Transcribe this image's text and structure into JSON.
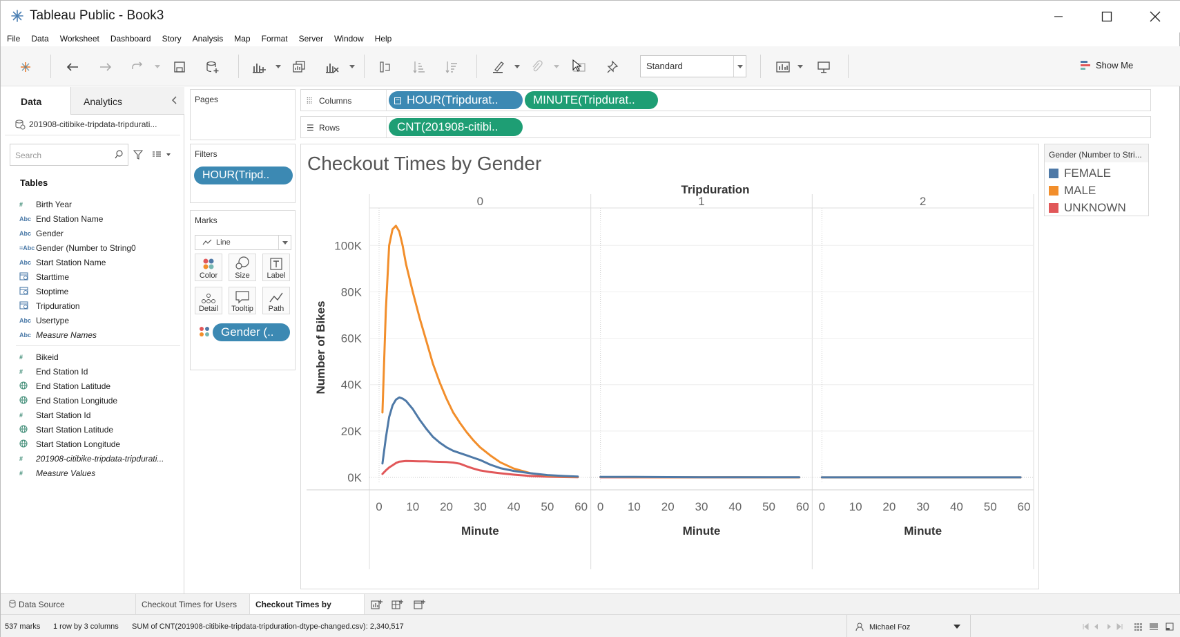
{
  "window": {
    "title": "Tableau Public - Book3",
    "buttons": {
      "minimize": "minimize",
      "maximize": "maximize",
      "close": "close"
    }
  },
  "menu": [
    "File",
    "Data",
    "Worksheet",
    "Dashboard",
    "Story",
    "Analysis",
    "Map",
    "Format",
    "Server",
    "Window",
    "Help"
  ],
  "toolbar": {
    "fit_select": "Standard",
    "show_me": "Show Me"
  },
  "data_pane": {
    "tab_data": "Data",
    "tab_analytics": "Analytics",
    "datasource": "201908-citibike-tripdata-tripdurati...",
    "search_placeholder": "Search",
    "tables_header": "Tables",
    "dimensions": [
      {
        "icon": "#",
        "label": "Birth Year",
        "type": "number"
      },
      {
        "icon": "Abc",
        "label": "End Station Name",
        "type": "string"
      },
      {
        "icon": "Abc",
        "label": "Gender",
        "type": "string"
      },
      {
        "icon": "=Abc",
        "label": "Gender (Number to String0",
        "type": "calc-string"
      },
      {
        "icon": "Abc",
        "label": "Start Station Name",
        "type": "string"
      },
      {
        "icon": "date",
        "label": "Starttime",
        "type": "date"
      },
      {
        "icon": "date",
        "label": "Stoptime",
        "type": "date"
      },
      {
        "icon": "date",
        "label": "Tripduration",
        "type": "date"
      },
      {
        "icon": "Abc",
        "label": "Usertype",
        "type": "string"
      },
      {
        "icon": "Abc",
        "label": "Measure Names",
        "type": "string",
        "italic": true
      }
    ],
    "measures": [
      {
        "icon": "#",
        "label": "Bikeid",
        "type": "number"
      },
      {
        "icon": "#",
        "label": "End Station Id",
        "type": "number"
      },
      {
        "icon": "globe",
        "label": "End Station Latitude",
        "type": "geo"
      },
      {
        "icon": "globe",
        "label": "End Station Longitude",
        "type": "geo"
      },
      {
        "icon": "#",
        "label": "Start Station Id",
        "type": "number"
      },
      {
        "icon": "globe",
        "label": "Start Station Latitude",
        "type": "geo"
      },
      {
        "icon": "globe",
        "label": "Start Station Longitude",
        "type": "geo"
      },
      {
        "icon": "#",
        "label": "201908-citibike-tripdata-tripdurati...",
        "type": "number",
        "italic": true
      },
      {
        "icon": "#",
        "label": "Measure Values",
        "type": "number",
        "italic": true
      }
    ]
  },
  "cards": {
    "pages": "Pages",
    "filters": "Filters",
    "filter_pill": "HOUR(Tripd..",
    "marks": "Marks",
    "mark_type": "Line",
    "mark_buttons": [
      "Color",
      "Size",
      "Label",
      "Detail",
      "Tooltip",
      "Path"
    ],
    "color_pill": "Gender (.."
  },
  "shelves": {
    "columns_label": "Columns",
    "rows_label": "Rows",
    "columns_pills": [
      "HOUR(Tripdurat..",
      "MINUTE(Tripdurat.."
    ],
    "rows_pills": [
      "CNT(201908-citibi.."
    ]
  },
  "sheet": {
    "title": "Checkout Times by Gender"
  },
  "legend": {
    "title": "Gender (Number to Stri...",
    "items": [
      {
        "label": "FEMALE",
        "color": "#4e79a7"
      },
      {
        "label": "MALE",
        "color": "#f28e2b"
      },
      {
        "label": "UNKNOWN",
        "color": "#e15759"
      }
    ]
  },
  "chart_data": {
    "type": "line",
    "title": "Checkout Times by Gender",
    "panel_header": "Tripduration",
    "panels": [
      "0",
      "1",
      "2"
    ],
    "xlabel": "Minute",
    "ylabel": "Number of Bikes",
    "x_ticks": [
      0,
      10,
      20,
      30,
      40,
      50,
      60
    ],
    "y_ticks": [
      "0K",
      "20K",
      "40K",
      "60K",
      "80K",
      "100K"
    ],
    "xlim": [
      0,
      60
    ],
    "ylim": [
      0,
      112000
    ],
    "grid": true,
    "series": [
      {
        "name": "FEMALE",
        "color": "#4e79a7",
        "panels": [
          {
            "x": [
              1,
              2,
              3,
              4,
              5,
              6,
              7,
              8,
              10,
              12,
              14,
              16,
              18,
              20,
              22,
              24,
              26,
              28,
              30,
              33,
              36,
              40,
              45,
              50,
              55,
              59
            ],
            "y": [
              6000,
              17000,
              26000,
              31000,
              33500,
              34500,
              34000,
              33000,
              29500,
              25000,
              21000,
              17500,
              15000,
              13000,
              11500,
              10500,
              9500,
              8500,
              7500,
              5500,
              4000,
              2800,
              1800,
              1000,
              600,
              400
            ]
          },
          {
            "x": [
              0,
              10,
              20,
              30,
              40,
              50,
              59
            ],
            "y": [
              200,
              200,
              150,
              100,
              80,
              60,
              50
            ]
          },
          {
            "x": [
              0,
              10,
              20,
              30,
              40,
              50,
              59
            ],
            "y": [
              30,
              30,
              30,
              30,
              30,
              30,
              30
            ]
          }
        ]
      },
      {
        "name": "MALE",
        "color": "#f28e2b",
        "panels": [
          {
            "x": [
              1,
              2,
              3,
              4,
              5,
              6,
              7,
              8,
              10,
              12,
              14,
              16,
              18,
              20,
              22,
              24,
              26,
              28,
              30,
              33,
              36,
              40,
              45,
              50,
              55,
              59
            ],
            "y": [
              28000,
              72000,
              100000,
              107000,
              108500,
              106000,
              100000,
              92000,
              80000,
              69000,
              59000,
              49000,
              41000,
              34000,
              28000,
              23500,
              19500,
              16000,
              13000,
              9500,
              6500,
              3800,
              1800,
              800,
              400,
              250
            ]
          },
          {
            "x": [
              0,
              10,
              20,
              30,
              40,
              50,
              59
            ],
            "y": [
              150,
              120,
              100,
              80,
              60,
              40,
              30
            ]
          },
          {
            "x": [
              0,
              10,
              20,
              30,
              40,
              50,
              59
            ],
            "y": [
              20,
              20,
              20,
              20,
              20,
              20,
              20
            ]
          }
        ]
      },
      {
        "name": "UNKNOWN",
        "color": "#e15759",
        "panels": [
          {
            "x": [
              1,
              2,
              3,
              4,
              5,
              6,
              8,
              10,
              12,
              14,
              16,
              18,
              20,
              22,
              24,
              26,
              28,
              30,
              33,
              36,
              40,
              45,
              50,
              55,
              59
            ],
            "y": [
              1500,
              3000,
              4300,
              5200,
              6200,
              6800,
              7100,
              7000,
              6900,
              6900,
              6800,
              6700,
              6600,
              6400,
              5900,
              4800,
              3800,
              3000,
              2300,
              1800,
              1200,
              600,
              300,
              150,
              80
            ]
          },
          {
            "x": [
              0,
              10,
              20,
              30,
              40,
              50,
              59
            ],
            "y": [
              40,
              30,
              20,
              20,
              15,
              10,
              10
            ]
          },
          {
            "x": [
              0,
              10,
              20,
              30,
              40,
              50,
              59
            ],
            "y": [
              5,
              5,
              5,
              5,
              5,
              5,
              5
            ]
          }
        ]
      }
    ]
  },
  "tabs": {
    "data_source": "Data Source",
    "sheets": [
      "Checkout Times for Users",
      "Checkout Times by Gender"
    ],
    "active": "Checkout Times by Gender"
  },
  "status": {
    "marks": "537 marks",
    "layout": "1 row by 3 columns",
    "sum": "SUM of CNT(201908-citibike-tripdata-tripduration-dtype-changed.csv): 2,340,517",
    "user": "Michael Foz"
  }
}
